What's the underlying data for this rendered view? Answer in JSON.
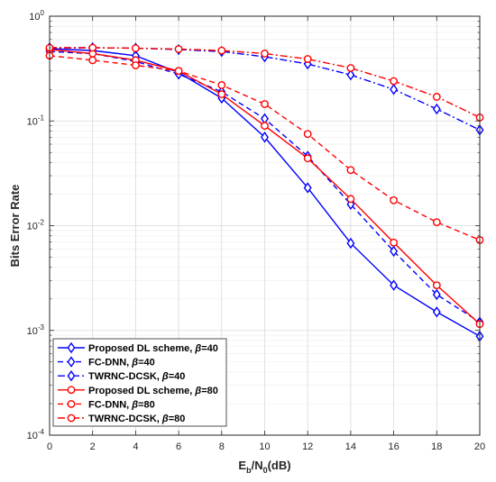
{
  "chart_data": {
    "type": "line",
    "xlabel": {
      "main": "E",
      "sub1": "b",
      "mid": "/N",
      "sub2": "0",
      "end": "(dB)"
    },
    "ylabel": "Bits Error Rate",
    "yscale": "log",
    "xlim": [
      0,
      20
    ],
    "ylim": [
      0.0001,
      1
    ],
    "xticks": [
      0,
      2,
      4,
      6,
      8,
      10,
      12,
      14,
      16,
      18,
      20
    ],
    "yticks": [
      {
        "value": 1,
        "base": "10",
        "exp": "0"
      },
      {
        "value": 0.1,
        "base": "10",
        "exp": "-1"
      },
      {
        "value": 0.01,
        "base": "10",
        "exp": "-2"
      },
      {
        "value": 0.001,
        "base": "10",
        "exp": "-3"
      },
      {
        "value": 0.0001,
        "base": "10",
        "exp": "-4"
      }
    ],
    "grid": true,
    "legend_position": "bottom-left",
    "x": [
      0,
      2,
      4,
      6,
      8,
      10,
      12,
      14,
      16,
      18,
      20
    ],
    "series": [
      {
        "name": "Proposed DL scheme, ",
        "beta": "40",
        "color": "#0000ff",
        "dash": "solid",
        "marker": "diamond",
        "values": [
          0.49,
          0.47,
          0.42,
          0.29,
          0.165,
          0.07,
          0.023,
          0.0068,
          0.0027,
          0.0015,
          0.00088
        ]
      },
      {
        "name": "FC-DNN, ",
        "beta": "40",
        "color": "#0000ff",
        "dash": "dashed",
        "marker": "diamond",
        "values": [
          0.46,
          0.44,
          0.37,
          0.28,
          0.19,
          0.105,
          0.046,
          0.016,
          0.0057,
          0.0022,
          0.0012
        ]
      },
      {
        "name": "TWRNC-DCSK, ",
        "beta": "40",
        "color": "#0000ff",
        "dash": "dashdot",
        "marker": "diamond",
        "values": [
          0.5,
          0.5,
          0.495,
          0.48,
          0.46,
          0.41,
          0.35,
          0.275,
          0.2,
          0.13,
          0.082
        ]
      },
      {
        "name": "Proposed DL scheme, ",
        "beta": "80",
        "color": "#ff0000",
        "dash": "solid",
        "marker": "circle",
        "values": [
          0.48,
          0.44,
          0.38,
          0.3,
          0.18,
          0.09,
          0.044,
          0.018,
          0.0069,
          0.0027,
          0.00115
        ]
      },
      {
        "name": "FC-DNN, ",
        "beta": "80",
        "color": "#ff0000",
        "dash": "dashed",
        "marker": "circle",
        "values": [
          0.42,
          0.38,
          0.34,
          0.3,
          0.22,
          0.145,
          0.075,
          0.034,
          0.0175,
          0.0108,
          0.0073
        ]
      },
      {
        "name": "TWRNC-DCSK, ",
        "beta": "80",
        "color": "#ff0000",
        "dash": "dashdot",
        "marker": "circle",
        "values": [
          0.5,
          0.5,
          0.495,
          0.485,
          0.47,
          0.44,
          0.39,
          0.32,
          0.24,
          0.17,
          0.108
        ]
      }
    ]
  }
}
